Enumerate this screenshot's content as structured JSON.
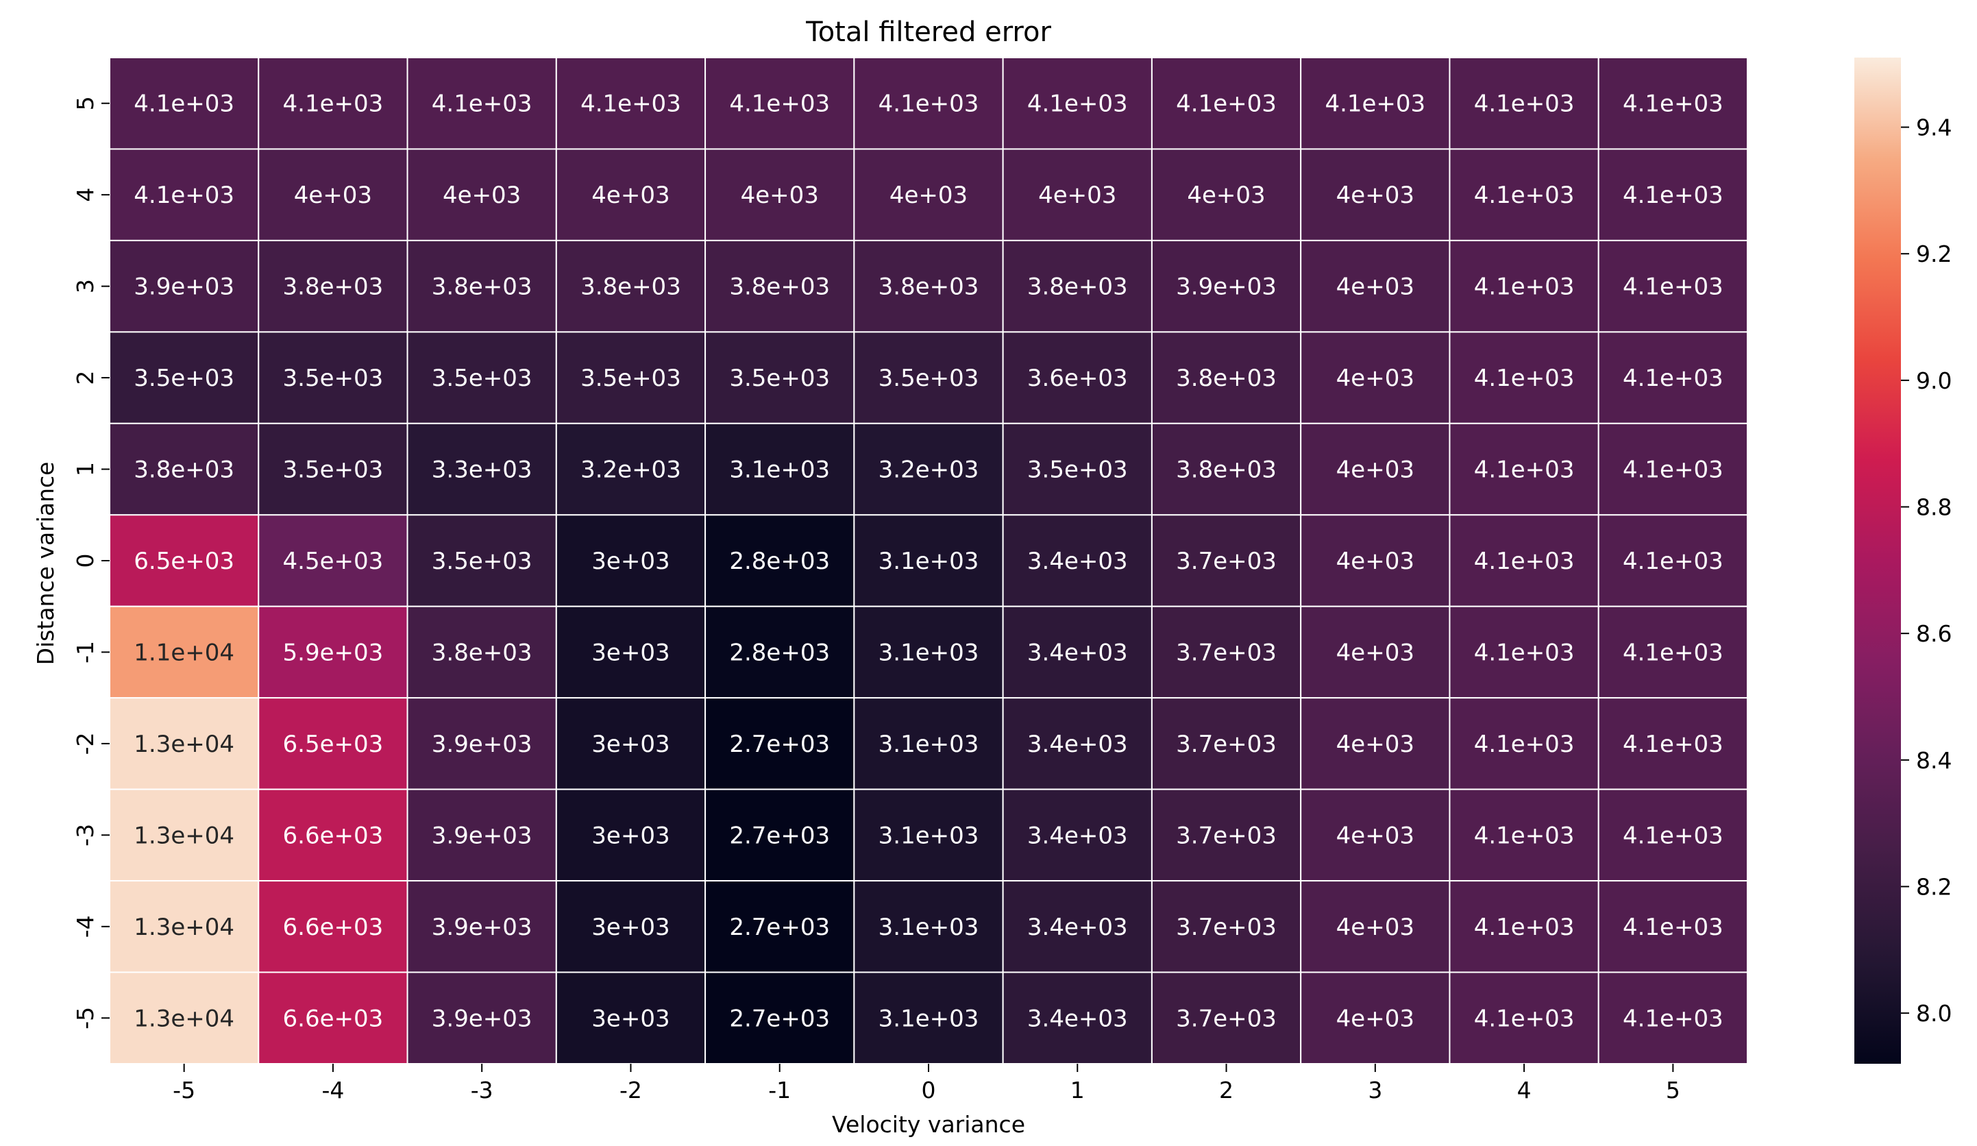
{
  "chart_data": {
    "type": "heatmap",
    "title": "Total filtered error",
    "xlabel": "Velocity variance",
    "ylabel": "Distance variance",
    "x": [
      "-5",
      "-4",
      "-3",
      "-2",
      "-1",
      "0",
      "1",
      "2",
      "3",
      "4",
      "5"
    ],
    "y": [
      "5",
      "4",
      "3",
      "2",
      "1",
      "0",
      "-1",
      "-2",
      "-3",
      "-4",
      "-5"
    ],
    "values": [
      [
        4100,
        4100,
        4100,
        4100,
        4100,
        4100,
        4100,
        4100,
        4100,
        4100,
        4100
      ],
      [
        4100,
        4000,
        4000,
        4000,
        4000,
        4000,
        4000,
        4000,
        4000,
        4100,
        4100
      ],
      [
        3900,
        3800,
        3800,
        3800,
        3800,
        3800,
        3800,
        3900,
        4000,
        4100,
        4100
      ],
      [
        3500,
        3500,
        3500,
        3500,
        3500,
        3500,
        3600,
        3800,
        4000,
        4100,
        4100
      ],
      [
        3800,
        3500,
        3300,
        3200,
        3100,
        3200,
        3500,
        3800,
        4000,
        4100,
        4100
      ],
      [
        6500,
        4500,
        3500,
        3000,
        2800,
        3100,
        3400,
        3700,
        4000,
        4100,
        4100
      ],
      [
        11000,
        5900,
        3800,
        3000,
        2800,
        3100,
        3400,
        3700,
        4000,
        4100,
        4100
      ],
      [
        13000,
        6500,
        3900,
        3000,
        2700,
        3100,
        3400,
        3700,
        4000,
        4100,
        4100
      ],
      [
        13000,
        6600,
        3900,
        3000,
        2700,
        3100,
        3400,
        3700,
        4000,
        4100,
        4100
      ],
      [
        13000,
        6600,
        3900,
        3000,
        2700,
        3100,
        3400,
        3700,
        4000,
        4100,
        4100
      ],
      [
        13000,
        6600,
        3900,
        3000,
        2700,
        3100,
        3400,
        3700,
        4000,
        4100,
        4100
      ]
    ],
    "labels": [
      [
        "4.1e+03",
        "4.1e+03",
        "4.1e+03",
        "4.1e+03",
        "4.1e+03",
        "4.1e+03",
        "4.1e+03",
        "4.1e+03",
        "4.1e+03",
        "4.1e+03",
        "4.1e+03"
      ],
      [
        "4.1e+03",
        "4e+03",
        "4e+03",
        "4e+03",
        "4e+03",
        "4e+03",
        "4e+03",
        "4e+03",
        "4e+03",
        "4.1e+03",
        "4.1e+03"
      ],
      [
        "3.9e+03",
        "3.8e+03",
        "3.8e+03",
        "3.8e+03",
        "3.8e+03",
        "3.8e+03",
        "3.8e+03",
        "3.9e+03",
        "4e+03",
        "4.1e+03",
        "4.1e+03"
      ],
      [
        "3.5e+03",
        "3.5e+03",
        "3.5e+03",
        "3.5e+03",
        "3.5e+03",
        "3.5e+03",
        "3.6e+03",
        "3.8e+03",
        "4e+03",
        "4.1e+03",
        "4.1e+03"
      ],
      [
        "3.8e+03",
        "3.5e+03",
        "3.3e+03",
        "3.2e+03",
        "3.1e+03",
        "3.2e+03",
        "3.5e+03",
        "3.8e+03",
        "4e+03",
        "4.1e+03",
        "4.1e+03"
      ],
      [
        "6.5e+03",
        "4.5e+03",
        "3.5e+03",
        "3e+03",
        "2.8e+03",
        "3.1e+03",
        "3.4e+03",
        "3.7e+03",
        "4e+03",
        "4.1e+03",
        "4.1e+03"
      ],
      [
        "1.1e+04",
        "5.9e+03",
        "3.8e+03",
        "3e+03",
        "2.8e+03",
        "3.1e+03",
        "3.4e+03",
        "3.7e+03",
        "4e+03",
        "4.1e+03",
        "4.1e+03"
      ],
      [
        "1.3e+04",
        "6.5e+03",
        "3.9e+03",
        "3e+03",
        "2.7e+03",
        "3.1e+03",
        "3.4e+03",
        "3.7e+03",
        "4e+03",
        "4.1e+03",
        "4.1e+03"
      ],
      [
        "1.3e+04",
        "6.6e+03",
        "3.9e+03",
        "3e+03",
        "2.7e+03",
        "3.1e+03",
        "3.4e+03",
        "3.7e+03",
        "4e+03",
        "4.1e+03",
        "4.1e+03"
      ],
      [
        "1.3e+04",
        "6.6e+03",
        "3.9e+03",
        "3e+03",
        "2.7e+03",
        "3.1e+03",
        "3.4e+03",
        "3.7e+03",
        "4e+03",
        "4.1e+03",
        "4.1e+03"
      ],
      [
        "1.3e+04",
        "6.6e+03",
        "3.9e+03",
        "3e+03",
        "2.7e+03",
        "3.1e+03",
        "3.4e+03",
        "3.7e+03",
        "4e+03",
        "4.1e+03",
        "4.1e+03"
      ]
    ],
    "colorbar": {
      "scale": "log",
      "range": [
        7.92,
        9.51
      ],
      "ticks": [
        8.0,
        8.2,
        8.4,
        8.6,
        8.8,
        9.0,
        9.2,
        9.4
      ],
      "tick_labels": [
        "8.0",
        "8.2",
        "8.4",
        "8.6",
        "8.8",
        "9.0",
        "9.2",
        "9.4"
      ],
      "colormap": "rocket"
    },
    "grid": false,
    "legend": "none"
  }
}
